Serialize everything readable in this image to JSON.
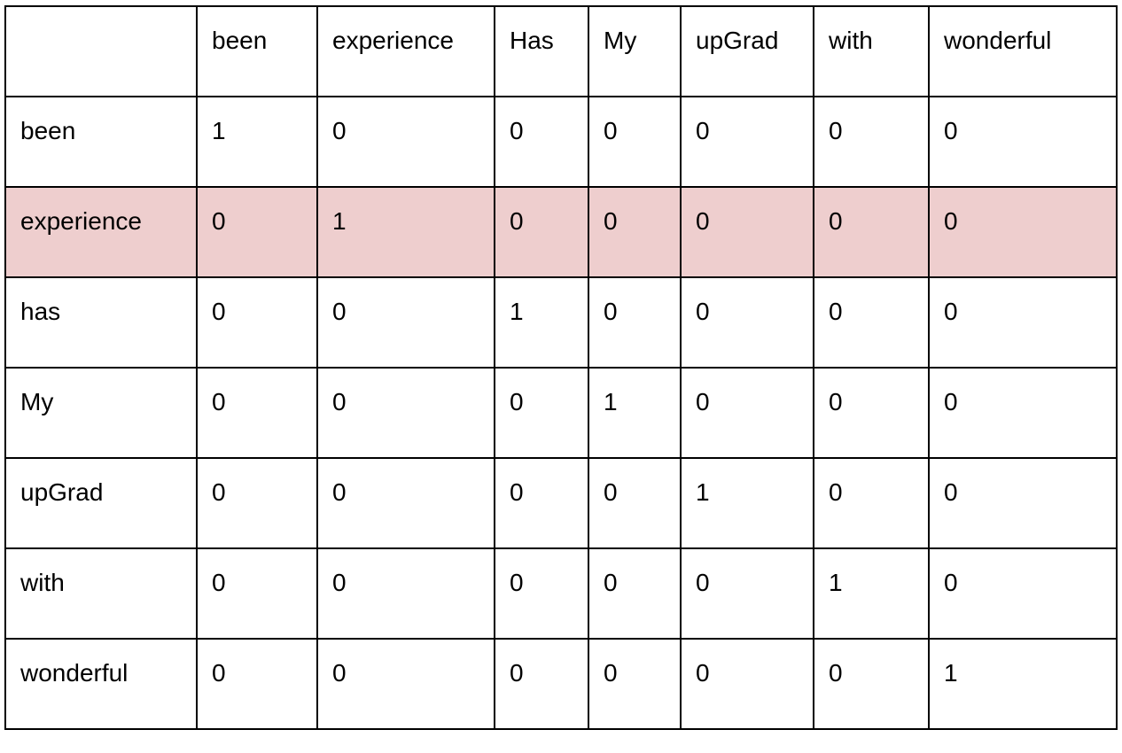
{
  "table": {
    "header": [
      "",
      "been",
      "experience",
      "Has",
      "My",
      "upGrad",
      "with",
      "wonderful"
    ],
    "highlight_color": "#eecece",
    "highlighted_row": "experience",
    "rows": [
      {
        "label": "been",
        "values": [
          "1",
          "0",
          "0",
          "0",
          "0",
          "0",
          "0"
        ]
      },
      {
        "label": "experience",
        "values": [
          "0",
          "1",
          "0",
          "0",
          "0",
          "0",
          "0"
        ]
      },
      {
        "label": "has",
        "values": [
          "0",
          "0",
          "1",
          "0",
          "0",
          "0",
          "0"
        ]
      },
      {
        "label": "My",
        "values": [
          "0",
          "0",
          "0",
          "1",
          "0",
          "0",
          "0"
        ]
      },
      {
        "label": "upGrad",
        "values": [
          "0",
          "0",
          "0",
          "0",
          "1",
          "0",
          "0"
        ]
      },
      {
        "label": "with",
        "values": [
          "0",
          "0",
          "0",
          "0",
          "0",
          "1",
          "0"
        ]
      },
      {
        "label": "wonderful",
        "values": [
          "0",
          "0",
          "0",
          "0",
          "0",
          "0",
          "1"
        ]
      }
    ]
  }
}
